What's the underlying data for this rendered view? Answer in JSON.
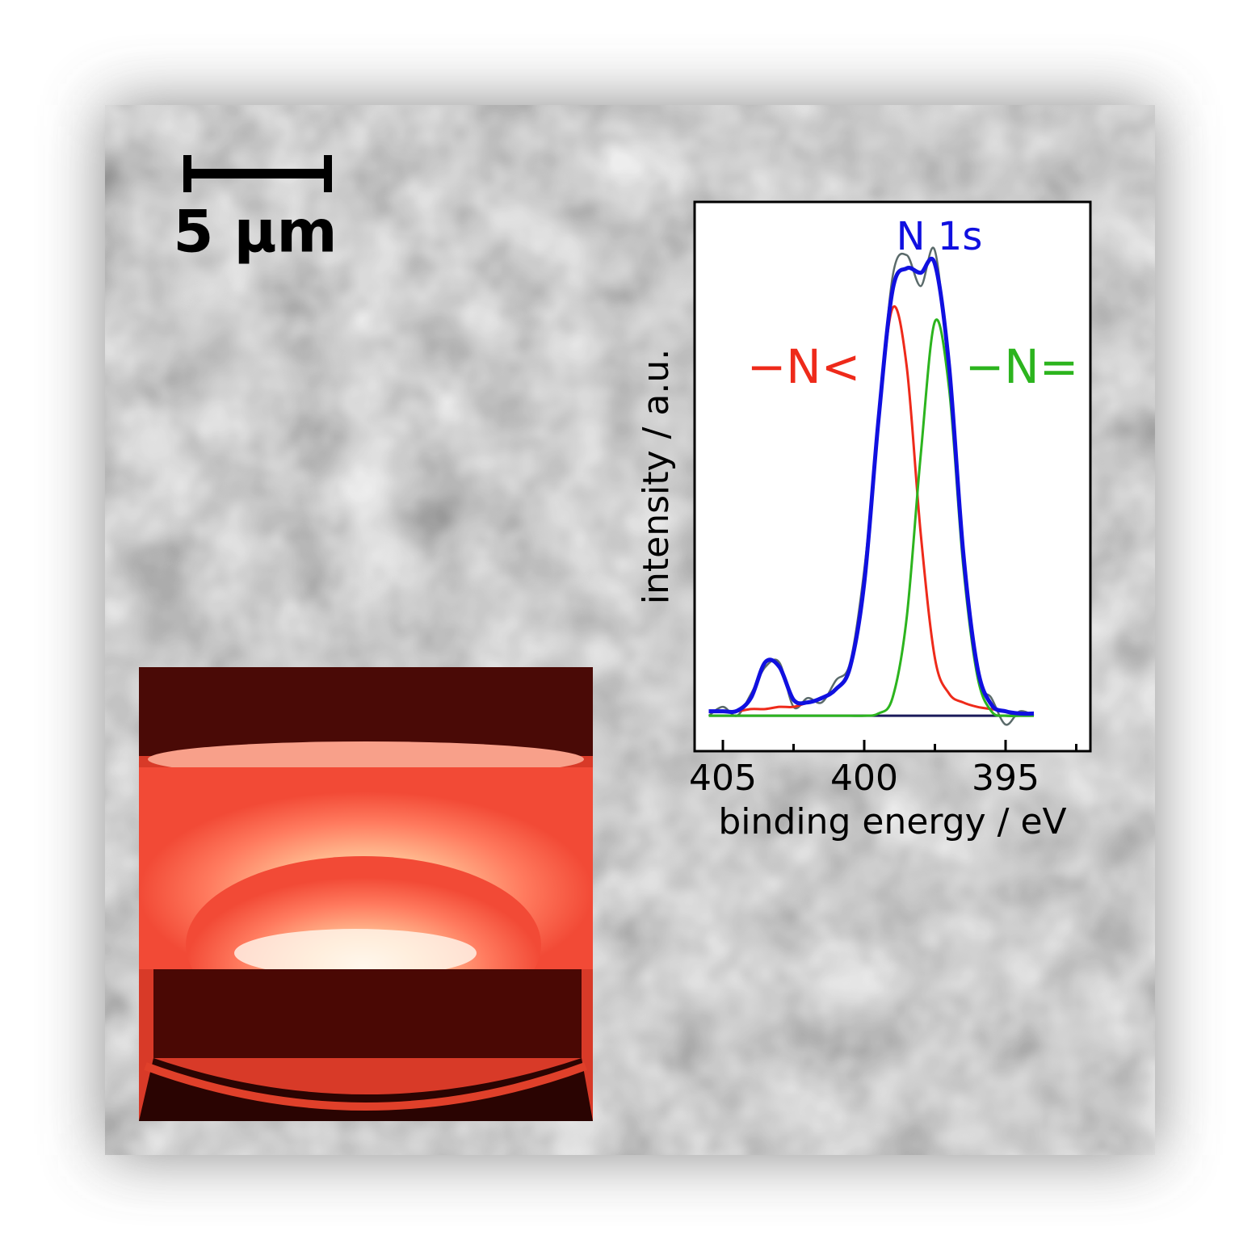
{
  "scale_bar": {
    "label": "5 µm"
  },
  "chart_data": {
    "type": "line",
    "title": "N 1s",
    "xlabel": "binding energy / eV",
    "ylabel": "intensity / a.u.",
    "x": [
      405.5,
      405,
      404.5,
      404,
      403.5,
      403,
      402.5,
      402,
      401.5,
      401,
      400.5,
      400,
      399.5,
      399,
      398.5,
      398,
      397.5,
      397,
      396.5,
      396,
      395.5,
      395,
      394.5,
      394
    ],
    "xlim": [
      406,
      392
    ],
    "ylim": [
      -0.08,
      1.16
    ],
    "xticks": [
      405,
      400,
      395
    ],
    "xminorticks": [
      402.5,
      397.5,
      392.5
    ],
    "series": [
      {
        "color": "#5a6a6a",
        "values": [
          0.0,
          0.02,
          0.0,
          0.05,
          0.11,
          0.12,
          0.02,
          0.04,
          0.03,
          0.08,
          0.12,
          0.33,
          0.65,
          0.99,
          1.04,
          0.97,
          1.05,
          0.76,
          0.38,
          0.09,
          0.04,
          -0.02,
          0.01,
          0.0
        ]
      },
      {
        "color": "#1a1a5a",
        "values": [
          0,
          0,
          0,
          0,
          0,
          0,
          0,
          0,
          0,
          0,
          0,
          0,
          0,
          0,
          0,
          0,
          0,
          0,
          0,
          0,
          0,
          0,
          0,
          0
        ]
      },
      {
        "label": "−N<",
        "color": "#ee2a1a",
        "values": [
          0.01,
          0.01,
          0.01,
          0.015,
          0.015,
          0.02,
          0.02,
          0.03,
          0.04,
          0.06,
          0.11,
          0.3,
          0.66,
          0.92,
          0.79,
          0.41,
          0.13,
          0.05,
          0.03,
          0.02,
          0.015,
          0.01,
          0.005,
          0.005
        ]
      },
      {
        "label": "−N=",
        "color": "#2cb41e",
        "values": [
          0,
          0,
          0,
          0,
          0,
          0,
          0,
          0,
          0,
          0,
          0,
          0,
          0.005,
          0.04,
          0.22,
          0.59,
          0.89,
          0.74,
          0.34,
          0.09,
          0.01,
          0,
          0,
          0
        ]
      },
      {
        "color": "#1010e0",
        "values": [
          0.01,
          0.01,
          0.011,
          0.041,
          0.121,
          0.11,
          0.036,
          0.03,
          0.04,
          0.06,
          0.11,
          0.3,
          0.665,
          0.96,
          1.01,
          1.0,
          1.02,
          0.79,
          0.37,
          0.11,
          0.025,
          0.01,
          0.005,
          0.005
        ]
      }
    ],
    "title_color": "#1010e0"
  }
}
